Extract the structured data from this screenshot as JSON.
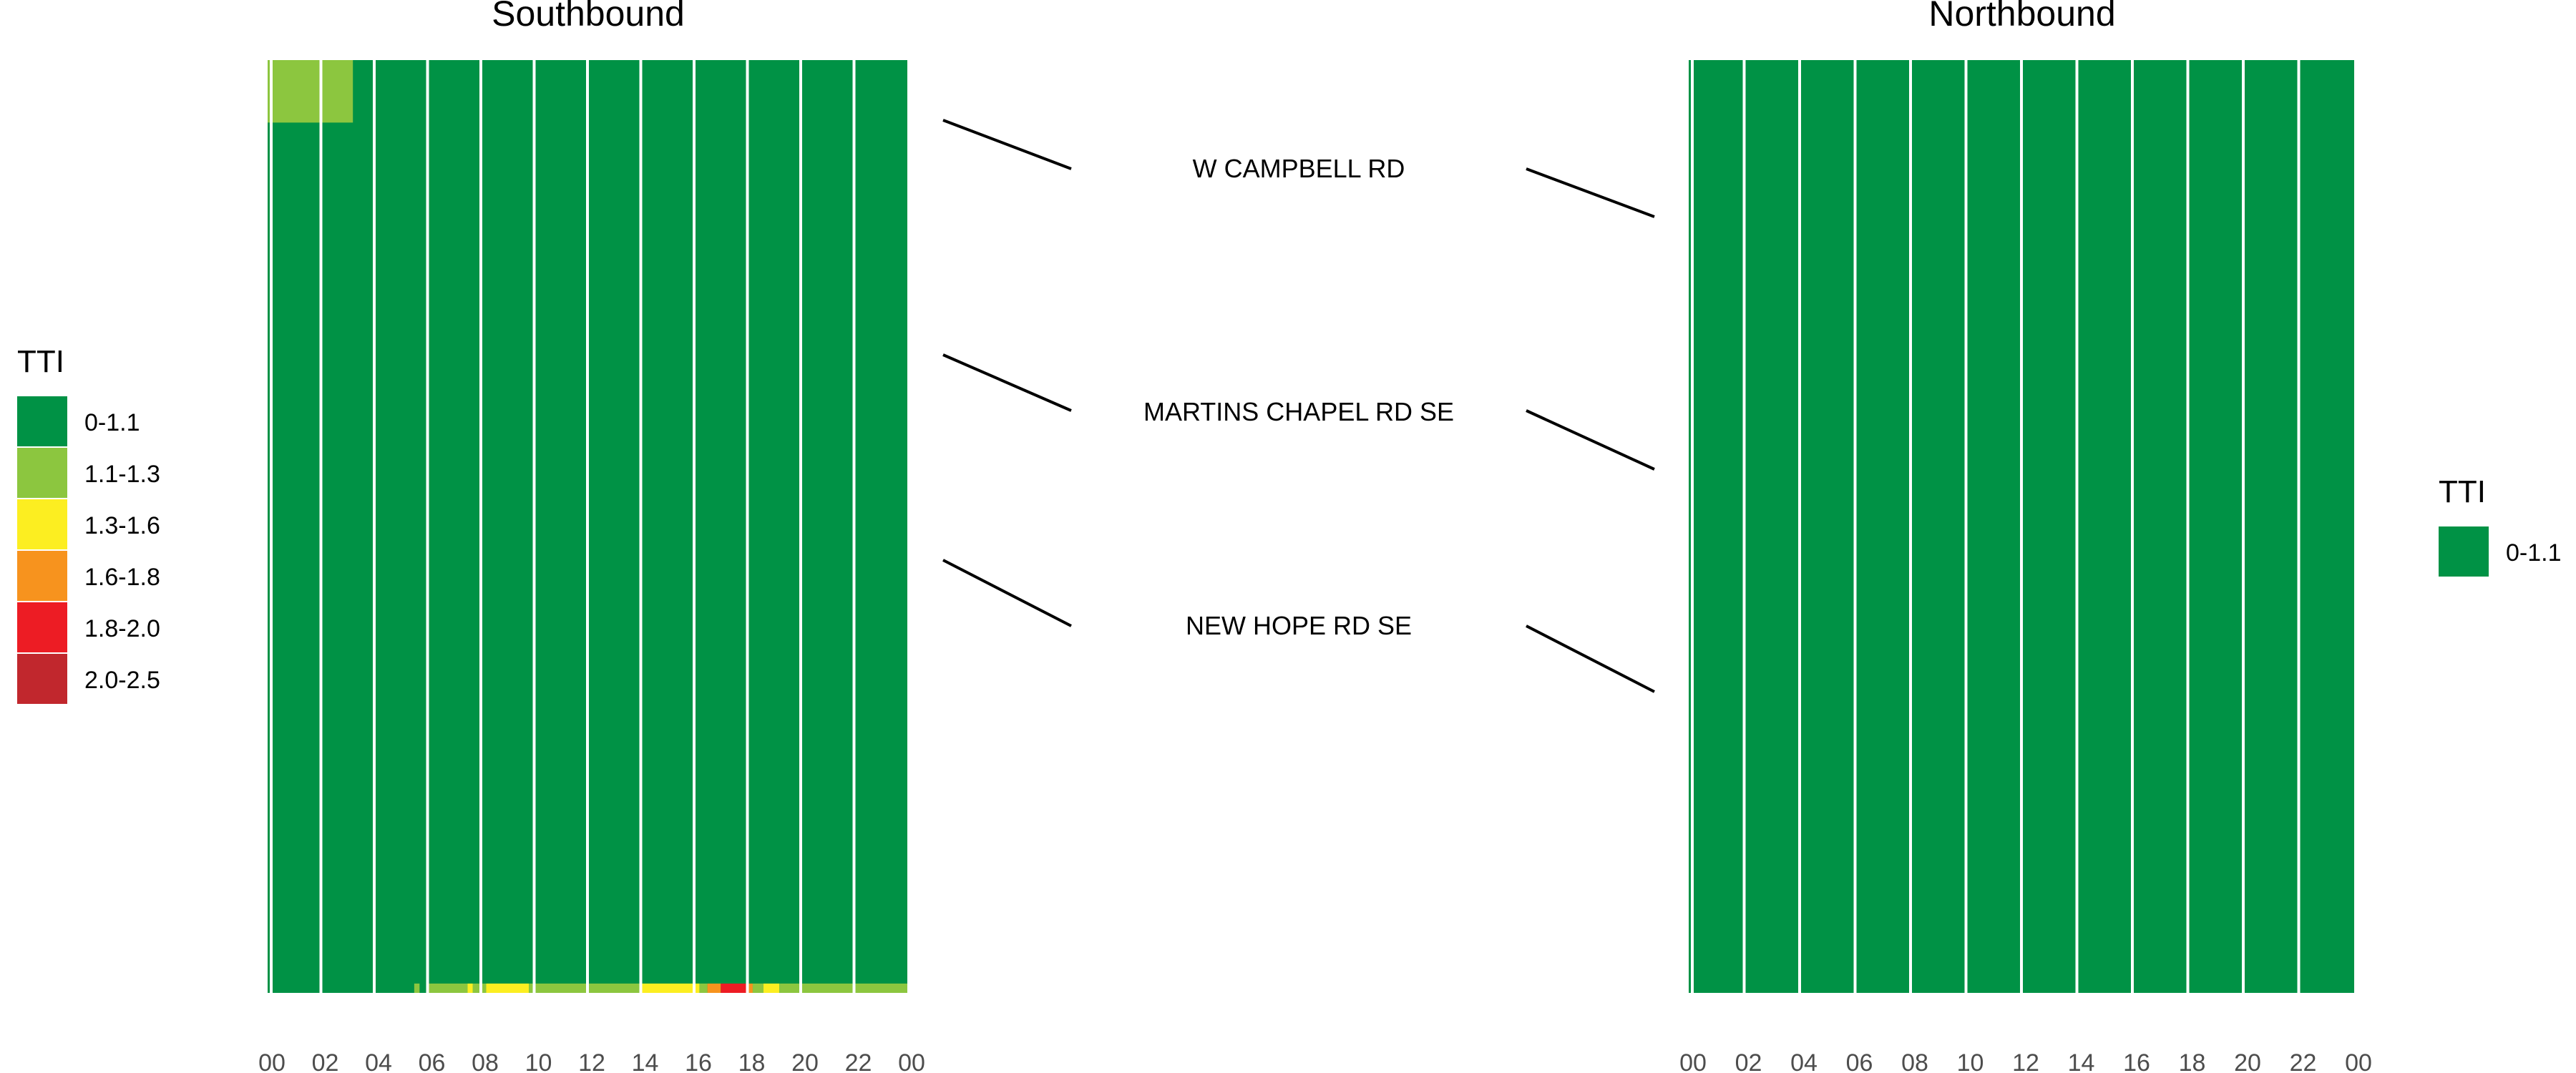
{
  "chart_data": [
    {
      "type": "heatmap",
      "title": "Southbound",
      "x_ticks": [
        "00",
        "02",
        "04",
        "06",
        "08",
        "10",
        "12",
        "14",
        "16",
        "18",
        "20",
        "22",
        "00"
      ],
      "x_range_hours": [
        0,
        24
      ],
      "background_category": "0-1.1",
      "patches": [
        {
          "from_hour": 0.0,
          "to_hour": 3.2,
          "y_from": 0.0,
          "y_to": 0.067,
          "category": "1.1-1.3"
        },
        {
          "from_hour": 5.5,
          "to_hour": 5.7,
          "y_from": 0.99,
          "y_to": 1.0,
          "category": "1.1-1.3"
        },
        {
          "from_hour": 6.0,
          "to_hour": 7.5,
          "y_from": 0.99,
          "y_to": 1.0,
          "category": "1.1-1.3"
        },
        {
          "from_hour": 7.5,
          "to_hour": 7.7,
          "y_from": 0.99,
          "y_to": 1.0,
          "category": "1.3-1.6"
        },
        {
          "from_hour": 7.7,
          "to_hour": 8.2,
          "y_from": 0.99,
          "y_to": 1.0,
          "category": "1.1-1.3"
        },
        {
          "from_hour": 8.2,
          "to_hour": 9.8,
          "y_from": 0.99,
          "y_to": 1.0,
          "category": "1.3-1.6"
        },
        {
          "from_hour": 9.8,
          "to_hour": 14.0,
          "y_from": 0.99,
          "y_to": 1.0,
          "category": "1.1-1.3"
        },
        {
          "from_hour": 14.0,
          "to_hour": 16.2,
          "y_from": 0.99,
          "y_to": 1.0,
          "category": "1.3-1.6"
        },
        {
          "from_hour": 16.2,
          "to_hour": 16.5,
          "y_from": 0.99,
          "y_to": 1.0,
          "category": "1.1-1.3"
        },
        {
          "from_hour": 16.5,
          "to_hour": 17.0,
          "y_from": 0.99,
          "y_to": 1.0,
          "category": "1.6-1.8"
        },
        {
          "from_hour": 17.0,
          "to_hour": 18.0,
          "y_from": 0.99,
          "y_to": 1.0,
          "category": "1.8-2.0"
        },
        {
          "from_hour": 18.0,
          "to_hour": 18.2,
          "y_from": 0.99,
          "y_to": 1.0,
          "category": "1.6-1.8"
        },
        {
          "from_hour": 18.2,
          "to_hour": 18.6,
          "y_from": 0.99,
          "y_to": 1.0,
          "category": "1.1-1.3"
        },
        {
          "from_hour": 18.6,
          "to_hour": 19.2,
          "y_from": 0.99,
          "y_to": 1.0,
          "category": "1.3-1.6"
        },
        {
          "from_hour": 19.2,
          "to_hour": 24.0,
          "y_from": 0.99,
          "y_to": 1.0,
          "category": "1.1-1.3"
        }
      ]
    },
    {
      "type": "heatmap",
      "title": "Northbound",
      "x_ticks": [
        "00",
        "02",
        "04",
        "06",
        "08",
        "10",
        "12",
        "14",
        "16",
        "18",
        "20",
        "22",
        "00"
      ],
      "x_range_hours": [
        0,
        24
      ],
      "background_category": "0-1.1",
      "patches": []
    }
  ],
  "road_labels": [
    "W CAMPBELL RD",
    "MARTINS CHAPEL RD SE",
    "NEW HOPE RD SE"
  ],
  "legends": {
    "left": {
      "title": "TTI",
      "items": [
        {
          "label": "0-1.1",
          "color": "#009245"
        },
        {
          "label": "1.1-1.3",
          "color": "#8cc63f"
        },
        {
          "label": "1.3-1.6",
          "color": "#fcee21"
        },
        {
          "label": "1.6-1.8",
          "color": "#f7931e"
        },
        {
          "label": "1.8-2.0",
          "color": "#ed1c24"
        },
        {
          "label": "2.0-2.5",
          "color": "#c1272d"
        }
      ]
    },
    "right": {
      "title": "TTI",
      "items": [
        {
          "label": "0-1.1",
          "color": "#009245"
        }
      ]
    }
  },
  "colors": {
    "0-1.1": "#009245",
    "1.1-1.3": "#8cc63f",
    "1.3-1.6": "#fcee21",
    "1.6-1.8": "#f7931e",
    "1.8-2.0": "#ed1c24",
    "2.0-2.5": "#c1272d",
    "text": "#000000",
    "tick": "#4d4d4d"
  }
}
